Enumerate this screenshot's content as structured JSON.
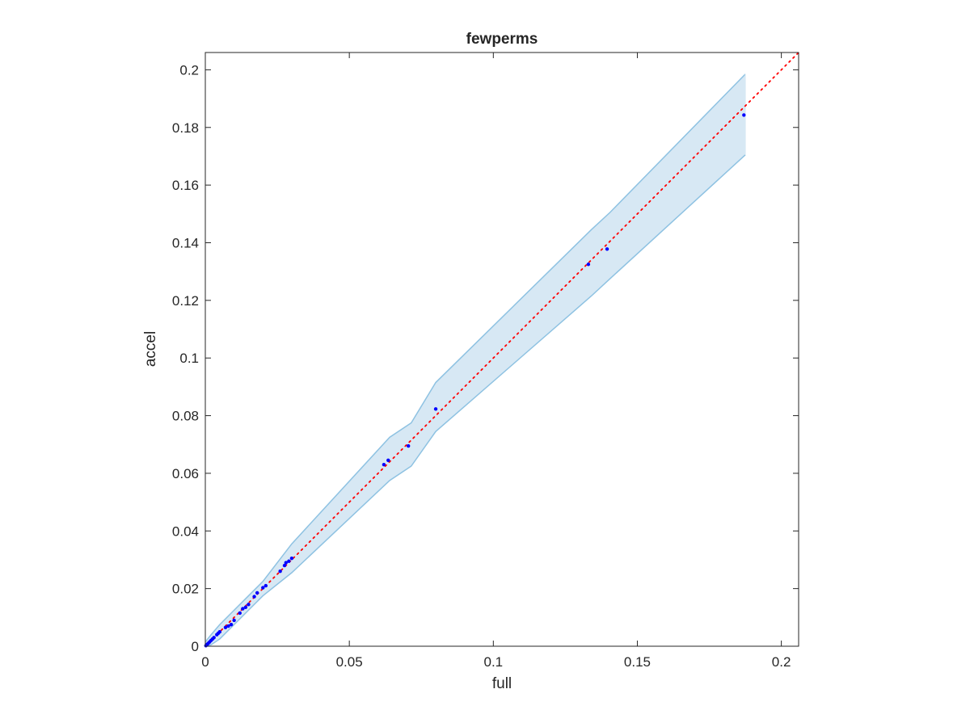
{
  "chart_data": {
    "type": "scatter",
    "title": "fewperms",
    "xlabel": "full",
    "ylabel": "accel",
    "xlim": [
      0,
      0.206
    ],
    "ylim": [
      0,
      0.206
    ],
    "xticks": [
      0,
      0.05,
      0.1,
      0.15,
      0.2
    ],
    "yticks": [
      0,
      0.02,
      0.04,
      0.06,
      0.08,
      0.1,
      0.12,
      0.14,
      0.16,
      0.18,
      0.2
    ],
    "xtick_labels": [
      "0",
      "0.05",
      "0.1",
      "0.15",
      "0.2"
    ],
    "ytick_labels": [
      "0",
      "0.02",
      "0.04",
      "0.06",
      "0.08",
      "0.1",
      "0.12",
      "0.14",
      "0.16",
      "0.18",
      "0.2"
    ],
    "grid": false,
    "series": [
      {
        "kind": "points",
        "color": "#0000ff",
        "x": [
          0.0002,
          0.0006,
          0.001,
          0.0015,
          0.002,
          0.0025,
          0.003,
          0.004,
          0.0045,
          0.005,
          0.007,
          0.008,
          0.009,
          0.01,
          0.012,
          0.013,
          0.014,
          0.015,
          0.017,
          0.018,
          0.02,
          0.021,
          0.026,
          0.0275,
          0.028,
          0.029,
          0.03,
          0.062,
          0.0635,
          0.0705,
          0.08,
          0.133,
          0.1395,
          0.187
        ],
        "y": [
          0.0002,
          0.0006,
          0.001,
          0.0015,
          0.002,
          0.0025,
          0.003,
          0.004,
          0.0045,
          0.005,
          0.0065,
          0.007,
          0.0075,
          0.009,
          0.0115,
          0.013,
          0.0135,
          0.0145,
          0.0172,
          0.0185,
          0.0203,
          0.021,
          0.026,
          0.028,
          0.029,
          0.0295,
          0.0305,
          0.063,
          0.0645,
          0.0695,
          0.0823,
          0.1325,
          0.1378,
          0.1843
        ]
      },
      {
        "kind": "reference-line",
        "style": "dotted",
        "color": "#ff0000",
        "x": [
          0,
          0.206
        ],
        "y": [
          0,
          0.206
        ]
      },
      {
        "kind": "band",
        "fill": "#d7e8f4",
        "stroke": "#8ec2e2",
        "x": [
          0,
          0.002,
          0.005,
          0.01,
          0.015,
          0.02,
          0.03,
          0.064,
          0.0715,
          0.08,
          0.134,
          0.1405,
          0.1875
        ],
        "upper": [
          0.0015,
          0.004,
          0.0075,
          0.0125,
          0.0175,
          0.0225,
          0.0355,
          0.0725,
          0.0775,
          0.0915,
          0.1445,
          0.1505,
          0.1985
        ],
        "lower": [
          0,
          0.0005,
          0.0025,
          0.0075,
          0.0125,
          0.0175,
          0.0255,
          0.0575,
          0.0625,
          0.0745,
          0.1215,
          0.1275,
          0.1705
        ]
      }
    ]
  }
}
